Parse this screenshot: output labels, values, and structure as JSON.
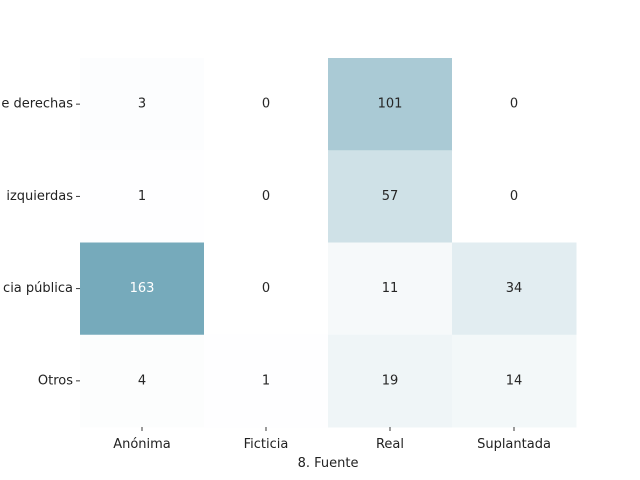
{
  "chart_data": {
    "type": "heatmap",
    "title": "",
    "xlabel": "8. Fuente",
    "ylabel": "",
    "x_categories": [
      "Anónima",
      "Ficticia",
      "Real",
      "Suplantada"
    ],
    "y_categories": [
      "e derechas",
      "izquierdas",
      "cia pública",
      "Otros"
    ],
    "values": [
      [
        3,
        0,
        101,
        0
      ],
      [
        1,
        0,
        57,
        0
      ],
      [
        163,
        0,
        11,
        34
      ],
      [
        4,
        1,
        19,
        14
      ]
    ],
    "value_range": [
      0,
      163
    ],
    "colors": {
      "low": "#ffffff",
      "high": "#76aabb",
      "text_dark": "#262626",
      "text_light": "#ffffff"
    },
    "grid": false,
    "colorbar": false
  }
}
